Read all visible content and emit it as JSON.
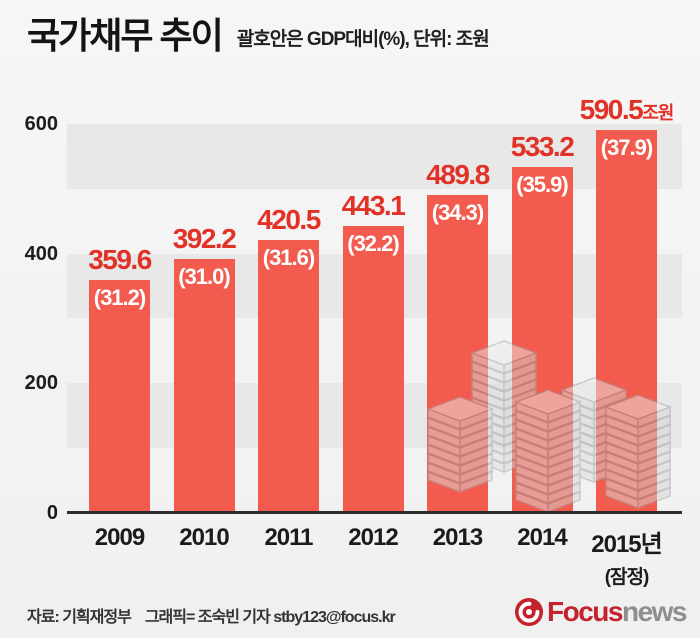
{
  "title": "국가채무 추이",
  "subtitle": "괄호안은 GDP대비(%), 단위: 조원",
  "chart_data": {
    "type": "bar",
    "title": "국가채무 추이",
    "subtitle_note": "괄호안은 GDP대비(%), 단위: 조원",
    "unit": "조원",
    "categories": [
      "2009",
      "2010",
      "2011",
      "2012",
      "2013",
      "2014",
      "2015년"
    ],
    "last_category_note": "(잠정)",
    "values": [
      359.6,
      392.2,
      420.5,
      443.1,
      489.8,
      533.2,
      590.5
    ],
    "gdp_ratios": [
      31.2,
      31.0,
      31.6,
      32.2,
      34.3,
      35.9,
      37.9
    ],
    "last_value_suffix": "조원",
    "ylim": [
      0,
      600
    ],
    "yticks": [
      600,
      400,
      200,
      0
    ],
    "legend": "none",
    "grid": "alternating-bands",
    "colors": {
      "bar": "#f25b4e",
      "value_label": "#e23227",
      "ratio_label": "#ffffff",
      "band": "#e8e8e8",
      "axis_line": "#2d2d2d",
      "text": "#1b1b1b"
    }
  },
  "footer": {
    "source": "자료: 기획재정부",
    "credit": "그래픽= 조숙빈 기자 stby123@focus.kr",
    "logo": {
      "focus": "Focus",
      "news": "news"
    }
  }
}
